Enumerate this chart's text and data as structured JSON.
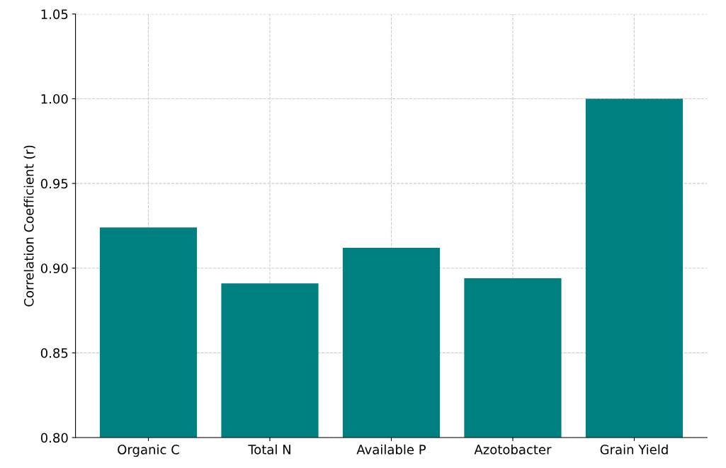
{
  "chart_data": {
    "type": "bar",
    "ylabel": "Correlation Coefficient (r)",
    "categories": [
      "Organic C",
      "Total N",
      "Available P",
      "Azotobacter",
      "Grain Yield"
    ],
    "values": [
      0.924,
      0.891,
      0.912,
      0.894,
      1.0
    ],
    "color": "#008080",
    "ylim": [
      0.8,
      1.05
    ],
    "yticks": [
      {
        "value": 0.8,
        "label": "0.80"
      },
      {
        "value": 0.85,
        "label": "0.85"
      },
      {
        "value": 0.9,
        "label": "0.90"
      },
      {
        "value": 0.95,
        "label": "0.95"
      },
      {
        "value": 1.0,
        "label": "1.00"
      },
      {
        "value": 1.05,
        "label": "1.05"
      }
    ],
    "grid": true
  }
}
